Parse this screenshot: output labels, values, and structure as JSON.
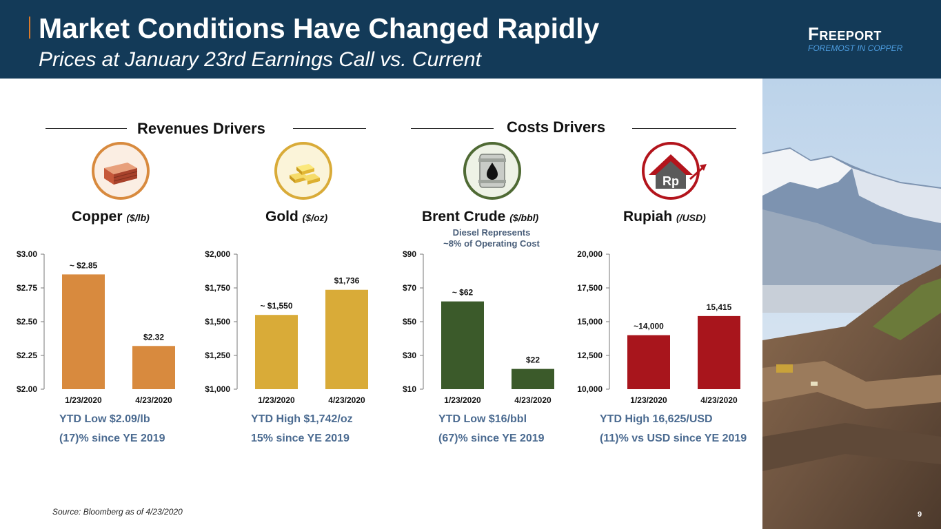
{
  "header": {
    "title": "Market Conditions Have Changed Rapidly",
    "subtitle": "Prices at January 23rd Earnings Call vs. Current",
    "logo_name": "Freeport",
    "logo_tagline": "FOREMOST IN COPPER",
    "background": "#133a58"
  },
  "sections": {
    "revenues": "Revenues Drivers",
    "costs": "Costs Drivers"
  },
  "note": {
    "line1": "Diesel Represents",
    "line2": "~8%  of Operating Cost"
  },
  "source": "Source: Bloomberg as of 4/23/2020",
  "page_number": "9",
  "chart_data": [
    {
      "id": "copper",
      "type": "bar",
      "title": "Copper",
      "unit": "($/lb)",
      "icon": "copper-bars-icon",
      "color": "#d88a3e",
      "categories": [
        "1/23/2020",
        "4/23/2020"
      ],
      "values": [
        2.85,
        2.32
      ],
      "value_labels": [
        "~ $2.85",
        "$2.32"
      ],
      "ylim": [
        2.0,
        3.0
      ],
      "yticks": [
        2.0,
        2.25,
        2.5,
        2.75,
        3.0
      ],
      "ytick_labels": [
        "$2.00",
        "$2.25",
        "$2.50",
        "$2.75",
        "$3.00"
      ],
      "stat_line1": "YTD Low $2.09/lb",
      "stat_line2": "(17)% since YE 2019"
    },
    {
      "id": "gold",
      "type": "bar",
      "title": "Gold",
      "unit": "($/oz)",
      "icon": "gold-bars-icon",
      "color": "#d9ab38",
      "categories": [
        "1/23/2020",
        "4/23/2020"
      ],
      "values": [
        1550,
        1736
      ],
      "value_labels": [
        "~ $1,550",
        "$1,736"
      ],
      "ylim": [
        1000,
        2000
      ],
      "yticks": [
        1000,
        1250,
        1500,
        1750,
        2000
      ],
      "ytick_labels": [
        "$1,000",
        "$1,250",
        "$1,500",
        "$1,750",
        "$2,000"
      ],
      "stat_line1": "YTD High $1,742/oz",
      "stat_line2": "15% since YE 2019"
    },
    {
      "id": "brent",
      "type": "bar",
      "title": "Brent Crude",
      "unit": "($/bbl)",
      "icon": "oil-barrel-icon",
      "color": "#3b5a2a",
      "categories": [
        "1/23/2020",
        "4/23/2020"
      ],
      "values": [
        62,
        22
      ],
      "value_labels": [
        "~ $62",
        "$22"
      ],
      "ylim": [
        10,
        90
      ],
      "yticks": [
        10,
        30,
        50,
        70,
        90
      ],
      "ytick_labels": [
        "$10",
        "$30",
        "$50",
        "$70",
        "$90"
      ],
      "stat_line1": "YTD Low $16/bbl",
      "stat_line2": "(67)% since YE 2019"
    },
    {
      "id": "rupiah",
      "type": "bar",
      "title": "Rupiah",
      "unit": "(/USD)",
      "icon": "rupiah-house-icon",
      "color": "#a8151c",
      "categories": [
        "1/23/2020",
        "4/23/2020"
      ],
      "values": [
        14000,
        15415
      ],
      "value_labels": [
        "~14,000",
        "15,415"
      ],
      "ylim": [
        10000,
        20000
      ],
      "yticks": [
        10000,
        12500,
        15000,
        17500,
        20000
      ],
      "ytick_labels": [
        "10,000",
        "12,500",
        "15,000",
        "17,500",
        "20,000"
      ],
      "stat_line1": "YTD High 16,625/USD",
      "stat_line2": "(11)% vs USD since YE 2019"
    }
  ]
}
